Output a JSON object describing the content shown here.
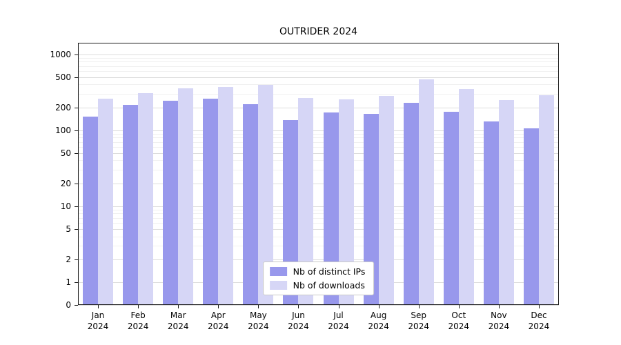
{
  "chart_data": {
    "type": "bar",
    "title": "OUTRIDER 2024",
    "categories": [
      "Jan",
      "Feb",
      "Mar",
      "Apr",
      "May",
      "Jun",
      "Jul",
      "Aug",
      "Sep",
      "Oct",
      "Nov",
      "Dec"
    ],
    "year_label": "2024",
    "series": [
      {
        "name": "Nb of distinct IPs",
        "color": "#9898ec",
        "values": [
          150,
          215,
          245,
          260,
          220,
          135,
          170,
          165,
          230,
          175,
          130,
          105
        ]
      },
      {
        "name": "Nb of downloads",
        "color": "#d6d6f6",
        "values": [
          260,
          310,
          355,
          370,
          395,
          265,
          255,
          280,
          470,
          350,
          250,
          290
        ]
      }
    ],
    "yticks": [
      0,
      1,
      2,
      5,
      10,
      20,
      50,
      100,
      200,
      500,
      1000
    ],
    "scale": "symlog",
    "ylim": [
      0,
      1400
    ],
    "grid": true,
    "legend_position": "lower center"
  }
}
